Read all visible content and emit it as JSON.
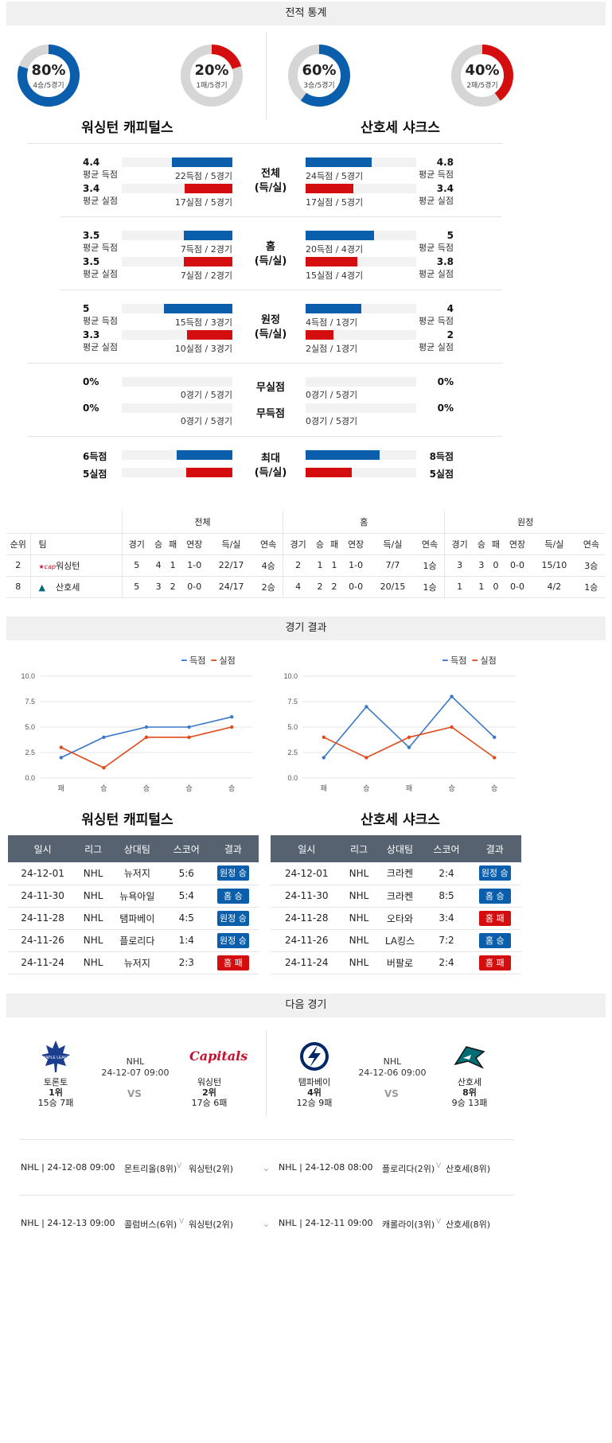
{
  "section_titles": {
    "stats": "전적 통계",
    "results": "경기 결과",
    "next": "다음 경기"
  },
  "teams": {
    "home": "워싱턴 캐피털스",
    "away": "산호세 샤크스"
  },
  "donuts": [
    {
      "pct": "80%",
      "sub": "4승/5경기",
      "color": "#0a5eab",
      "value": 80
    },
    {
      "pct": "20%",
      "sub": "1패/5경기",
      "color": "#d40e0e",
      "value": 20
    },
    {
      "pct": "60%",
      "sub": "3승/5경기",
      "color": "#0a5eab",
      "value": 60
    },
    {
      "pct": "40%",
      "sub": "2패/5경기",
      "color": "#d40e0e",
      "value": 40
    }
  ],
  "stats": {
    "overall": {
      "mid": [
        "전체",
        "(득/실)"
      ],
      "left": [
        {
          "val": "4.4",
          "lbl": "평균 득점",
          "txt": "22득점 / 5경기",
          "ratio": 0.55
        },
        {
          "val": "3.4",
          "lbl": "평균 실점",
          "txt": "17실점 / 5경기",
          "ratio": 0.43
        }
      ],
      "right": [
        {
          "val": "4.8",
          "lbl": "평균 득점",
          "txt": "24득점 / 5경기",
          "ratio": 0.6
        },
        {
          "val": "3.4",
          "lbl": "평균 실점",
          "txt": "17실점 / 5경기",
          "ratio": 0.43
        }
      ]
    },
    "home": {
      "mid": [
        "홈",
        "(득/실)"
      ],
      "left": [
        {
          "val": "3.5",
          "lbl": "평균 득점",
          "txt": "7득점 / 2경기",
          "ratio": 0.44
        },
        {
          "val": "3.5",
          "lbl": "평균 실점",
          "txt": "7실점 / 2경기",
          "ratio": 0.44
        }
      ],
      "right": [
        {
          "val": "5",
          "lbl": "평균 득점",
          "txt": "20득점 / 4경기",
          "ratio": 0.62
        },
        {
          "val": "3.8",
          "lbl": "평균 실점",
          "txt": "15실점 / 4경기",
          "ratio": 0.47
        }
      ]
    },
    "away": {
      "mid": [
        "원정",
        "(득/실)"
      ],
      "left": [
        {
          "val": "5",
          "lbl": "평균 득점",
          "txt": "15득점 / 3경기",
          "ratio": 0.62
        },
        {
          "val": "3.3",
          "lbl": "평균 실점",
          "txt": "10실점 / 3경기",
          "ratio": 0.41
        }
      ],
      "right": [
        {
          "val": "4",
          "lbl": "평균 득점",
          "txt": "4득점 / 1경기",
          "ratio": 0.5
        },
        {
          "val": "2",
          "lbl": "평균 실점",
          "txt": "2실점 / 1경기",
          "ratio": 0.25
        }
      ]
    },
    "shutout": {
      "mid1": "무실점",
      "mid2": "무득점",
      "left": [
        {
          "val": "0%",
          "txt": "0경기 / 5경기"
        },
        {
          "val": "0%",
          "txt": "0경기 / 5경기"
        }
      ],
      "right": [
        {
          "val": "0%",
          "txt": "0경기 / 5경기"
        },
        {
          "val": "0%",
          "txt": "0경기 / 5경기"
        }
      ]
    },
    "max": {
      "mid": [
        "최대",
        "(득/실)"
      ],
      "left": [
        {
          "val": "6득점",
          "ratio": 0.5
        },
        {
          "val": "5실점",
          "ratio": 0.42
        }
      ],
      "right": [
        {
          "val": "8득점",
          "ratio": 0.67
        },
        {
          "val": "5실점",
          "ratio": 0.42
        }
      ]
    }
  },
  "standings": {
    "groups": [
      "전체",
      "홈",
      "원정"
    ],
    "headers": [
      "순위",
      "팀",
      "경기",
      "승",
      "패",
      "연장",
      "득/실",
      "연속",
      "경기",
      "승",
      "패",
      "연장",
      "득/실",
      "연속",
      "경기",
      "승",
      "패",
      "연장",
      "득/실",
      "연속"
    ],
    "rows": [
      [
        "2",
        "워싱턴",
        "5",
        "4",
        "1",
        "1-0",
        "22/17",
        "4승",
        "2",
        "1",
        "1",
        "1-0",
        "7/7",
        "1승",
        "3",
        "3",
        "0",
        "0-0",
        "15/10",
        "3승"
      ],
      [
        "8",
        "산호세",
        "5",
        "3",
        "2",
        "0-0",
        "24/17",
        "2승",
        "4",
        "2",
        "2",
        "0-0",
        "20/15",
        "1승",
        "1",
        "1",
        "0",
        "0-0",
        "4/2",
        "1승"
      ]
    ]
  },
  "chart_data": [
    {
      "type": "line",
      "categories": [
        "패",
        "승",
        "승",
        "승",
        "승"
      ],
      "ylim": [
        0,
        10
      ],
      "yticks": [
        "0.0",
        "2.5",
        "5.0",
        "7.5",
        "10.0"
      ],
      "legend_position": "top-right",
      "series": [
        {
          "name": "득점",
          "color": "#3a78c9",
          "values": [
            2,
            4,
            5,
            5,
            6
          ]
        },
        {
          "name": "실점",
          "color": "#e04b1d",
          "values": [
            3,
            1,
            4,
            4,
            5
          ]
        }
      ]
    },
    {
      "type": "line",
      "categories": [
        "패",
        "승",
        "패",
        "승",
        "승"
      ],
      "ylim": [
        0,
        10
      ],
      "yticks": [
        "0.0",
        "2.5",
        "5.0",
        "7.5",
        "10.0"
      ],
      "legend_position": "top-right",
      "series": [
        {
          "name": "득점",
          "color": "#3a78c9",
          "values": [
            2,
            7,
            3,
            8,
            4
          ]
        },
        {
          "name": "실점",
          "color": "#e04b1d",
          "values": [
            4,
            2,
            4,
            5,
            2
          ]
        }
      ]
    }
  ],
  "results_headers": [
    "일시",
    "리그",
    "상대팀",
    "스코어",
    "결과"
  ],
  "results": {
    "home": [
      [
        "24-12-01",
        "NHL",
        "뉴저지",
        "5:6",
        "원정 승",
        "blue"
      ],
      [
        "24-11-30",
        "NHL",
        "뉴욕아일",
        "5:4",
        "홈 승",
        "blue"
      ],
      [
        "24-11-28",
        "NHL",
        "탬파베이",
        "4:5",
        "원정 승",
        "blue"
      ],
      [
        "24-11-26",
        "NHL",
        "플로리다",
        "1:4",
        "원정 승",
        "blue"
      ],
      [
        "24-11-24",
        "NHL",
        "뉴저지",
        "2:3",
        "홈 패",
        "red"
      ]
    ],
    "away": [
      [
        "24-12-01",
        "NHL",
        "크라켄",
        "2:4",
        "원정 승",
        "blue"
      ],
      [
        "24-11-30",
        "NHL",
        "크라켄",
        "8:5",
        "홈 승",
        "blue"
      ],
      [
        "24-11-28",
        "NHL",
        "오타와",
        "3:4",
        "홈 패",
        "red"
      ],
      [
        "24-11-26",
        "NHL",
        "LA킹스",
        "7:2",
        "홈 승",
        "blue"
      ],
      [
        "24-11-24",
        "NHL",
        "버팔로",
        "2:4",
        "홈 패",
        "red"
      ]
    ]
  },
  "next_games": [
    {
      "league": "NHL",
      "datetime": "24-12-07 09:00",
      "vs": "VS",
      "t1": {
        "name": "토론토",
        "rank": "1위",
        "record": "15승 7패"
      },
      "t2": {
        "name": "워싱턴",
        "rank": "2위",
        "record": "17승 6패"
      }
    },
    {
      "league": "NHL",
      "datetime": "24-12-06 09:00",
      "vs": "VS",
      "t1": {
        "name": "탬파베이",
        "rank": "4위",
        "record": "12승 9패"
      },
      "t2": {
        "name": "산호세",
        "rank": "8위",
        "record": "9승 13패"
      }
    }
  ],
  "schedule": [
    [
      "NHL | 24-12-08 09:00",
      "몬트리올(8위)",
      "워싱턴(2위)",
      "NHL | 24-12-08 08:00",
      "플로리다(2위)",
      "산호세(8위)"
    ],
    [
      "NHL | 24-12-13 09:00",
      "콜럼버스(6위)",
      "워싱턴(2위)",
      "NHL | 24-12-11 09:00",
      "캐롤라이(3위)",
      "산호세(8위)"
    ]
  ]
}
